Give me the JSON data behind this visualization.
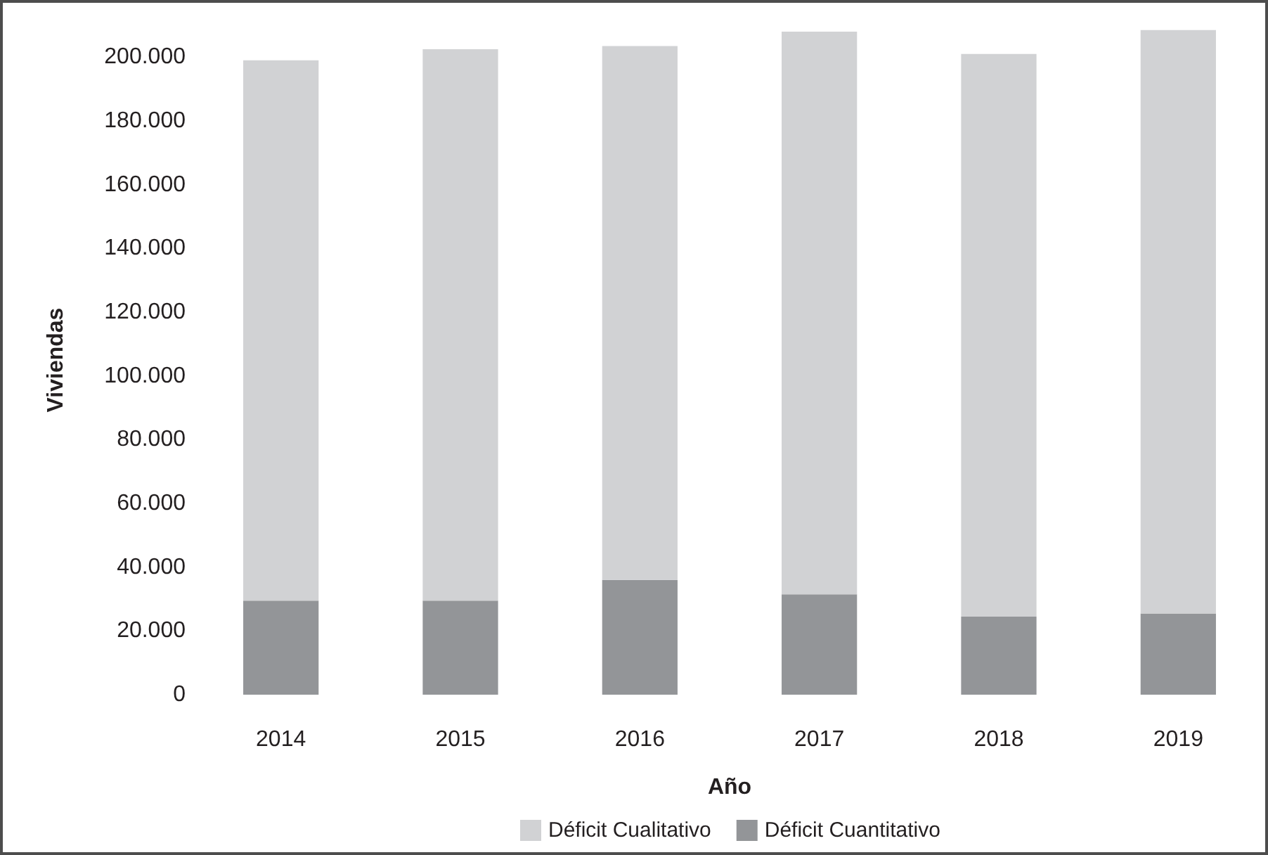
{
  "chart_data": {
    "type": "bar",
    "stacked": true,
    "xlabel": "Año",
    "ylabel": "Viviendas",
    "categories": [
      "2014",
      "2015",
      "2016",
      "2017",
      "2018",
      "2019"
    ],
    "series": [
      {
        "name": "Déficit Cuantitativo",
        "color": "#939598",
        "values": [
          29500,
          29500,
          36000,
          31500,
          24500,
          25500
        ]
      },
      {
        "name": "Déficit Cualitativo",
        "color": "#d1d2d4",
        "values": [
          169500,
          173000,
          167500,
          176500,
          176500,
          183000
        ]
      }
    ],
    "ylim": [
      0,
      210000
    ],
    "yticks": [
      0,
      {
        "value": 20000,
        "label": "20.000"
      },
      {
        "value": 40000,
        "label": "40.000"
      },
      {
        "value": 60000,
        "label": "60.000"
      },
      {
        "value": 80000,
        "label": "80.000"
      },
      {
        "value": 100000,
        "label": "100.000"
      },
      {
        "value": 120000,
        "label": "120.000"
      },
      {
        "value": 140000,
        "label": "140.000"
      },
      {
        "value": 160000,
        "label": "160.000"
      },
      {
        "value": 180000,
        "label": "180.000"
      },
      {
        "value": 200000,
        "label": "200.000"
      }
    ],
    "legend": "bottom"
  }
}
